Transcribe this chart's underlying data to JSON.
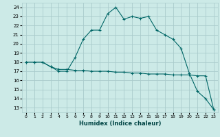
{
  "xlabel": "Humidex (Indice chaleur)",
  "background_color": "#cceae7",
  "grid_color": "#aacccc",
  "line_color": "#006666",
  "x_ticks": [
    0,
    1,
    2,
    3,
    4,
    5,
    6,
    7,
    8,
    9,
    10,
    11,
    12,
    13,
    14,
    15,
    16,
    17,
    18,
    19,
    20,
    21,
    22,
    23
  ],
  "y_ticks": [
    13,
    14,
    15,
    16,
    17,
    18,
    19,
    20,
    21,
    22,
    23,
    24
  ],
  "ylim": [
    12.5,
    24.5
  ],
  "xlim": [
    -0.5,
    23.5
  ],
  "line1_x": [
    0,
    1,
    2,
    3,
    4,
    5,
    6,
    7,
    8,
    9,
    10,
    11,
    12,
    13,
    14,
    15,
    16,
    17,
    18,
    19,
    20,
    21,
    22,
    23
  ],
  "line1_y": [
    18,
    18,
    18,
    17.5,
    17,
    17,
    18.5,
    20.5,
    21.5,
    21.5,
    23.3,
    24,
    22.7,
    23,
    22.8,
    23,
    21.5,
    21,
    20.5,
    19.5,
    16.8,
    14.8,
    14,
    12.8
  ],
  "line2_x": [
    0,
    1,
    2,
    3,
    4,
    5,
    6,
    7,
    8,
    9,
    10,
    11,
    12,
    13,
    14,
    15,
    16,
    17,
    18,
    19,
    20,
    21,
    22,
    23
  ],
  "line2_y": [
    18,
    18,
    18,
    17.5,
    17.2,
    17.2,
    17.1,
    17.1,
    17.0,
    17.0,
    17.0,
    16.9,
    16.9,
    16.8,
    16.8,
    16.7,
    16.7,
    16.7,
    16.6,
    16.6,
    16.6,
    16.5,
    16.5,
    12.8
  ]
}
